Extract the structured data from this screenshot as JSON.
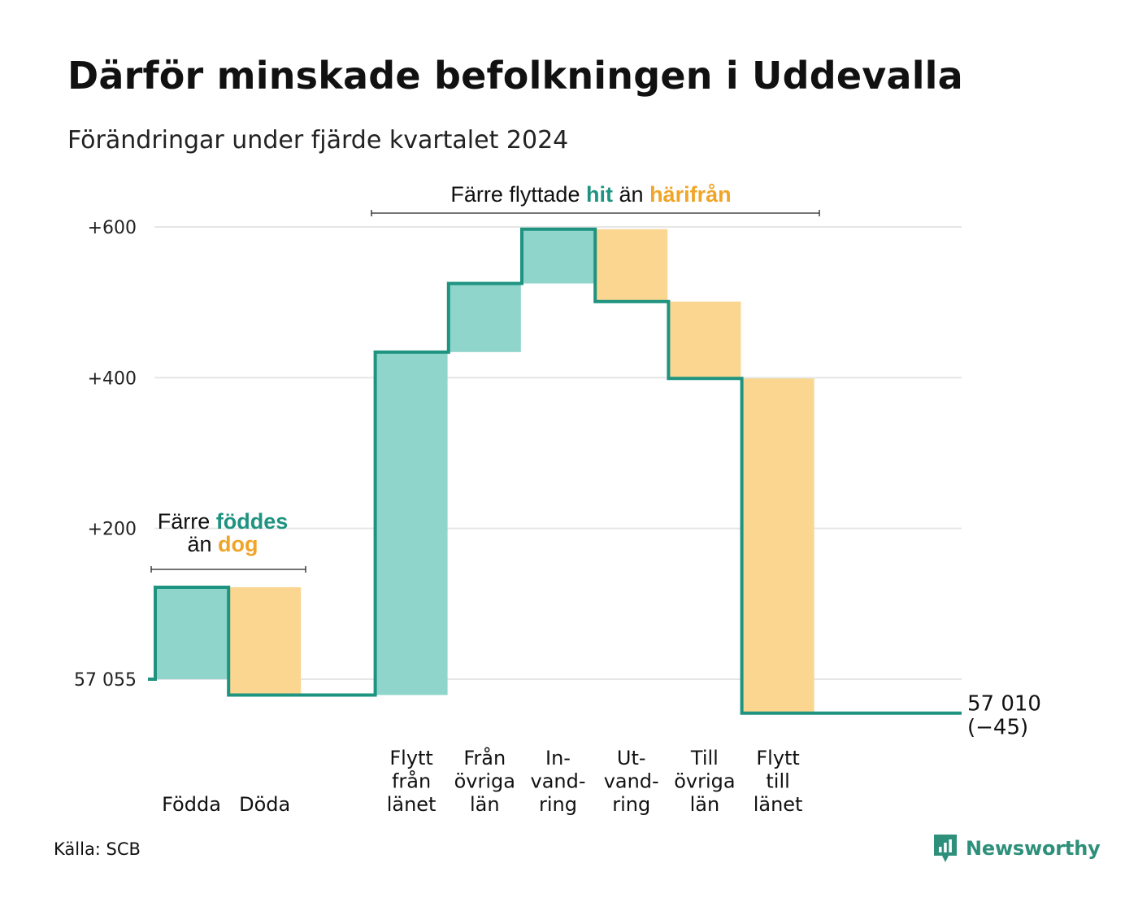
{
  "title": "Därför minskade befolkningen i Uddevalla",
  "subtitle": "Förändringar under fjärde kvartalet 2024",
  "source": "Källa: SCB",
  "logo": {
    "text": "Newsworthy",
    "icon": "newsworthy-logo-icon"
  },
  "colors": {
    "increase": "#8fd5cc",
    "decrease": "#fad690",
    "line": "#1e9380",
    "grid": "#e6e6e6",
    "accent_teal": "#1e9380",
    "accent_orange": "#f0a528"
  },
  "annotations": {
    "births": {
      "line1_prefix": "Färre",
      "line1_highlight": "föddes",
      "line2_prefix": "än",
      "line2_highlight": "dog"
    },
    "moves": {
      "prefix": "Färre flyttade",
      "highlight1": "hit",
      "middle": "än",
      "highlight2": "härifrån"
    }
  },
  "chart_data": {
    "type": "waterfall",
    "title": "Därför minskade befolkningen i Uddevalla",
    "subtitle": "Förändringar under fjärde kvartalet 2024",
    "start_value": 57055,
    "start_label": "57 055",
    "end_value": 57010,
    "end_label": "57 010",
    "end_change_label": "(−45)",
    "ylim": [
      -50,
      630
    ],
    "yticks": [
      {
        "value": 0,
        "label": "57 055"
      },
      {
        "value": 200,
        "label": "+200"
      },
      {
        "value": 400,
        "label": "+400"
      },
      {
        "value": 600,
        "label": "+600"
      }
    ],
    "grid": true,
    "categories": [
      [
        "Födda"
      ],
      [
        "Döda"
      ],
      [],
      [
        "Flytt",
        "från",
        "länet"
      ],
      [
        "Från",
        "övriga",
        "län"
      ],
      [
        "In-",
        "vand-",
        "ring"
      ],
      [
        "Ut-",
        "vand-",
        "ring"
      ],
      [
        "Till",
        "övriga",
        "län"
      ],
      [
        "Flytt",
        "till",
        "länet"
      ],
      []
    ],
    "values": [
      122,
      -143,
      0,
      455,
      91,
      72,
      -96,
      -102,
      -444,
      0
    ]
  }
}
